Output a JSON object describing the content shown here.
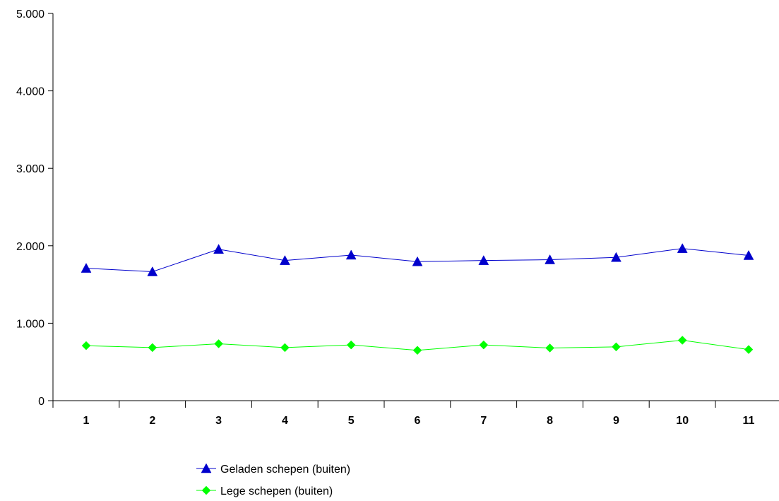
{
  "chart_data": {
    "type": "line",
    "categories": [
      "1",
      "2",
      "3",
      "4",
      "5",
      "6",
      "7",
      "8",
      "9",
      "10",
      "11"
    ],
    "ylim": [
      0,
      5000
    ],
    "yticks": [
      0,
      1000,
      2000,
      3000,
      4000,
      5000
    ],
    "ytick_labels": [
      "0",
      "1.000",
      "2.000",
      "3.000",
      "4.000",
      "5.000"
    ],
    "grid": false,
    "legend_position": "bottom",
    "series": [
      {
        "name": "Geladen schepen (buiten)",
        "color": "#0000cc",
        "marker": "triangle",
        "values": [
          1710,
          1665,
          1955,
          1810,
          1880,
          1795,
          1810,
          1820,
          1850,
          1965,
          1875
        ]
      },
      {
        "name": "Lege schepen (buiten)",
        "color": "#00ff00",
        "marker": "diamond",
        "values": [
          710,
          685,
          735,
          685,
          720,
          650,
          720,
          680,
          695,
          780,
          660
        ]
      }
    ]
  }
}
